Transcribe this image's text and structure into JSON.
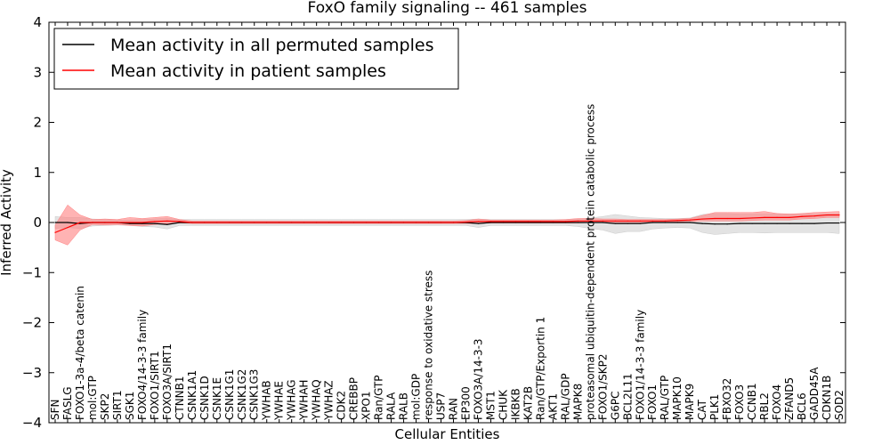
{
  "chart_data": {
    "type": "line",
    "title": "FoxO family signaling -- 461 samples",
    "xlabel": "Cellular Entities",
    "ylabel": "Inferred Activity",
    "ylim": [
      -4,
      4
    ],
    "yticks": [
      -4,
      -3,
      -2,
      -1,
      0,
      1,
      2,
      3,
      4
    ],
    "ytick_labels": [
      "−4",
      "−3",
      "−2",
      "−1",
      "0",
      "1",
      "2",
      "3",
      "4"
    ],
    "legend_position": "top-left",
    "categories": [
      "SFN",
      "FASLG",
      "FOXO1-3a-4/beta catenin",
      "mol:GTP",
      "SKP2",
      "SIRT1",
      "SGK1",
      "FOXO4/14-3-3 family",
      "FOXO1/SIRT1",
      "FOXO3A/SIRT1",
      "CTNNB1",
      "CSNK1A1",
      "CSNK1D",
      "CSNK1E",
      "CSNK1G1",
      "CSNK1G2",
      "CSNK1G3",
      "YWHAB",
      "YWHAE",
      "YWHAG",
      "YWHAH",
      "YWHAQ",
      "YWHAZ",
      "CDK2",
      "CREBBP",
      "XPO1",
      "Ran/GTP",
      "RALA",
      "RALB",
      "mol:GDP",
      "response to oxidative stress",
      "USP7",
      "RAN",
      "EP300",
      "FOXO3A/14-3-3",
      "MST1",
      "CHUK",
      "IKBKB",
      "KAT2B",
      "Ran/GTP/Exportin 1",
      "AKT1",
      "RAL/GDP",
      "MAPK8",
      "proteasomal ubiquitin-dependent protein catabolic process",
      "FOXO1/SKP2",
      "G6PC",
      "BCL2L11",
      "FOXO1/14-3-3 family",
      "FOXO1",
      "RAL/GTP",
      "MAPK10",
      "MAPK9",
      "CAT",
      "PLK1",
      "FBXO32",
      "FOXO3",
      "CCNB1",
      "RBL2",
      "FOXO4",
      "ZFAND5",
      "BCL6",
      "GADD45A",
      "CDKN1B",
      "SOD2"
    ],
    "series": [
      {
        "name": "Mean activity in all permuted samples",
        "color": "#000000",
        "band_color": "#cccccc",
        "values": [
          0.0,
          0.0,
          -0.02,
          0.0,
          0.0,
          0.0,
          -0.02,
          -0.02,
          -0.02,
          -0.04,
          0.0,
          0.0,
          0.0,
          0.0,
          0.0,
          0.0,
          0.0,
          0.0,
          0.0,
          0.0,
          0.0,
          0.0,
          0.0,
          0.0,
          0.0,
          0.0,
          0.0,
          0.0,
          0.0,
          0.0,
          0.0,
          0.0,
          0.0,
          0.0,
          -0.02,
          0.0,
          0.0,
          0.0,
          0.0,
          0.0,
          0.0,
          0.0,
          0.0,
          0.0,
          0.0,
          -0.02,
          -0.02,
          -0.02,
          0.0,
          0.0,
          0.0,
          0.0,
          -0.02,
          -0.03,
          -0.03,
          -0.02,
          -0.02,
          -0.02,
          -0.02,
          -0.02,
          -0.02,
          -0.02,
          -0.01,
          -0.01
        ],
        "lower": [
          -0.12,
          -0.1,
          -0.12,
          -0.07,
          -0.06,
          -0.05,
          -0.06,
          -0.08,
          -0.09,
          -0.13,
          -0.06,
          -0.06,
          -0.06,
          -0.06,
          -0.06,
          -0.06,
          -0.06,
          -0.06,
          -0.06,
          -0.06,
          -0.06,
          -0.06,
          -0.06,
          -0.06,
          -0.06,
          -0.06,
          -0.06,
          -0.06,
          -0.06,
          -0.06,
          -0.06,
          -0.06,
          -0.06,
          -0.06,
          -0.1,
          -0.06,
          -0.06,
          -0.06,
          -0.06,
          -0.06,
          -0.06,
          -0.06,
          -0.08,
          -0.12,
          -0.15,
          -0.22,
          -0.18,
          -0.18,
          -0.13,
          -0.11,
          -0.1,
          -0.11,
          -0.2,
          -0.24,
          -0.22,
          -0.2,
          -0.2,
          -0.21,
          -0.2,
          -0.2,
          -0.2,
          -0.2,
          -0.2,
          -0.22
        ],
        "upper": [
          0.12,
          0.1,
          0.1,
          0.07,
          0.06,
          0.05,
          0.05,
          0.06,
          0.07,
          0.08,
          0.06,
          0.06,
          0.06,
          0.06,
          0.06,
          0.06,
          0.06,
          0.06,
          0.06,
          0.06,
          0.06,
          0.06,
          0.06,
          0.06,
          0.06,
          0.06,
          0.06,
          0.06,
          0.06,
          0.06,
          0.06,
          0.06,
          0.06,
          0.06,
          0.07,
          0.06,
          0.06,
          0.06,
          0.06,
          0.06,
          0.06,
          0.06,
          0.07,
          0.09,
          0.12,
          0.16,
          0.13,
          0.1,
          0.09,
          0.08,
          0.08,
          0.09,
          0.16,
          0.18,
          0.18,
          0.17,
          0.17,
          0.17,
          0.17,
          0.17,
          0.17,
          0.17,
          0.17,
          0.18
        ]
      },
      {
        "name": "Mean activity in patient samples",
        "color": "#ff0000",
        "band_color": "#ff8080",
        "values": [
          -0.2,
          -0.1,
          0.0,
          0.0,
          0.0,
          0.0,
          0.0,
          0.0,
          0.02,
          0.03,
          0.02,
          0.0,
          0.0,
          0.0,
          0.0,
          0.0,
          0.0,
          0.0,
          0.0,
          0.0,
          0.0,
          0.0,
          0.0,
          0.0,
          0.0,
          0.0,
          0.0,
          0.0,
          0.0,
          0.0,
          0.0,
          0.0,
          0.0,
          0.01,
          0.02,
          0.02,
          0.02,
          0.02,
          0.02,
          0.02,
          0.02,
          0.02,
          0.03,
          0.03,
          0.03,
          0.03,
          0.03,
          0.03,
          0.03,
          0.03,
          0.04,
          0.05,
          0.07,
          0.08,
          0.08,
          0.08,
          0.09,
          0.1,
          0.1,
          0.1,
          0.12,
          0.13,
          0.15,
          0.15
        ],
        "lower": [
          -0.35,
          -0.45,
          -0.15,
          -0.04,
          -0.05,
          -0.04,
          -0.06,
          -0.07,
          -0.04,
          -0.02,
          -0.01,
          -0.02,
          -0.02,
          -0.02,
          -0.02,
          -0.02,
          -0.02,
          -0.02,
          -0.02,
          -0.02,
          -0.02,
          -0.02,
          -0.02,
          -0.02,
          -0.02,
          -0.02,
          -0.02,
          -0.02,
          -0.02,
          -0.02,
          -0.02,
          -0.02,
          -0.02,
          -0.02,
          -0.02,
          -0.01,
          -0.01,
          -0.01,
          -0.01,
          -0.01,
          -0.01,
          -0.01,
          -0.01,
          0.0,
          0.0,
          0.0,
          0.0,
          0.0,
          0.0,
          0.0,
          0.01,
          0.02,
          0.03,
          0.03,
          0.03,
          0.03,
          0.04,
          0.05,
          0.05,
          0.05,
          0.07,
          0.08,
          0.1,
          0.1
        ],
        "upper": [
          -0.05,
          0.35,
          0.15,
          0.06,
          0.07,
          0.06,
          0.1,
          0.08,
          0.1,
          0.12,
          0.06,
          0.03,
          0.03,
          0.03,
          0.03,
          0.03,
          0.03,
          0.03,
          0.03,
          0.03,
          0.03,
          0.03,
          0.03,
          0.03,
          0.03,
          0.03,
          0.03,
          0.03,
          0.03,
          0.03,
          0.03,
          0.03,
          0.03,
          0.04,
          0.07,
          0.05,
          0.05,
          0.05,
          0.05,
          0.05,
          0.05,
          0.06,
          0.08,
          0.08,
          0.07,
          0.07,
          0.06,
          0.06,
          0.06,
          0.06,
          0.07,
          0.08,
          0.14,
          0.2,
          0.2,
          0.2,
          0.2,
          0.22,
          0.18,
          0.17,
          0.18,
          0.2,
          0.21,
          0.22
        ]
      }
    ]
  }
}
